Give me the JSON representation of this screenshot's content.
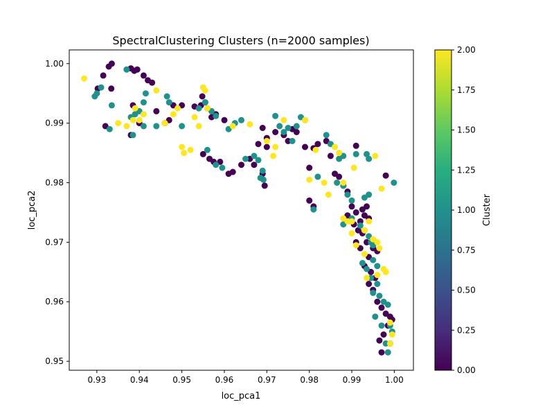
{
  "chart_data": {
    "type": "scatter",
    "title": "SpectralClustering Clusters (n=2000 samples)",
    "xlabel": "loc_pca1",
    "ylabel": "loc_pca2",
    "xlim": [
      0.9235,
      1.0045
    ],
    "ylim": [
      0.9485,
      1.0023
    ],
    "xticks": [
      0.93,
      0.94,
      0.95,
      0.96,
      0.97,
      0.98,
      0.99,
      1.0
    ],
    "xtick_labels": [
      "0.93",
      "0.94",
      "0.95",
      "0.96",
      "0.97",
      "0.98",
      "0.99",
      "1.00"
    ],
    "yticks": [
      0.95,
      0.96,
      0.97,
      0.98,
      0.99,
      1.0
    ],
    "ytick_labels": [
      "0.95",
      "0.96",
      "0.97",
      "0.98",
      "0.99",
      "1.00"
    ],
    "grid": false,
    "colormap": "viridis",
    "colorbar": {
      "label": "Cluster",
      "range": [
        0,
        2
      ],
      "ticks": [
        0,
        0.25,
        0.5,
        0.75,
        1.0,
        1.25,
        1.5,
        1.75,
        2.0
      ],
      "tick_labels": [
        "0.00",
        "0.25",
        "0.50",
        "0.75",
        "1.00",
        "1.25",
        "1.50",
        "1.75",
        "2.00"
      ]
    },
    "series": [
      {
        "cluster": 0,
        "color": "#440154",
        "points": [
          [
            0.9315,
            0.998
          ],
          [
            0.9328,
            0.9995
          ],
          [
            0.9335,
            1.0
          ],
          [
            0.9334,
            0.9958
          ],
          [
            0.9302,
            0.9958
          ],
          [
            0.938,
            0.9992
          ],
          [
            0.9388,
            0.9988
          ],
          [
            0.9395,
            0.999
          ],
          [
            0.941,
            0.998
          ],
          [
            0.942,
            0.9972
          ],
          [
            0.943,
            0.9968
          ],
          [
            0.9385,
            0.993
          ],
          [
            0.944,
            0.992
          ],
          [
            0.946,
            0.99
          ],
          [
            0.947,
            0.9905
          ],
          [
            0.948,
            0.993
          ],
          [
            0.95,
            0.993
          ],
          [
            0.953,
            0.9928
          ],
          [
            0.9545,
            0.993
          ],
          [
            0.9548,
            0.9945
          ],
          [
            0.9555,
            0.9935
          ],
          [
            0.956,
            0.9925
          ],
          [
            0.957,
            0.991
          ],
          [
            0.958,
            0.9915
          ],
          [
            0.96,
            0.9905
          ],
          [
            0.932,
            0.9895
          ],
          [
            0.938,
            0.988
          ],
          [
            0.94,
            0.99
          ],
          [
            0.955,
            0.9848
          ],
          [
            0.9565,
            0.984
          ],
          [
            0.9575,
            0.9835
          ],
          [
            0.959,
            0.9835
          ],
          [
            0.961,
            0.9815
          ],
          [
            0.962,
            0.9818
          ],
          [
            0.964,
            0.983
          ],
          [
            0.966,
            0.984
          ],
          [
            0.967,
            0.983
          ],
          [
            0.969,
            0.9815
          ],
          [
            0.9695,
            0.9795
          ],
          [
            0.968,
            0.9865
          ],
          [
            0.97,
            0.986
          ],
          [
            0.969,
            0.9892
          ],
          [
            0.97,
            0.9875
          ],
          [
            0.972,
            0.9885
          ],
          [
            0.974,
            0.988
          ],
          [
            0.976,
            0.989
          ],
          [
            0.977,
            0.9885
          ],
          [
            0.975,
            0.987
          ],
          [
            0.979,
            0.986
          ],
          [
            0.981,
            0.9858
          ],
          [
            0.98,
            0.9825
          ],
          [
            0.982,
            0.9865
          ],
          [
            0.984,
            0.987
          ],
          [
            0.985,
            0.9845
          ],
          [
            0.986,
            0.9815
          ],
          [
            0.987,
            0.981
          ],
          [
            0.988,
            0.9795
          ],
          [
            0.989,
            0.9785
          ],
          [
            0.98,
            0.977
          ],
          [
            0.981,
            0.976
          ],
          [
            0.99,
            0.976
          ],
          [
            0.991,
            0.975
          ],
          [
            0.992,
            0.9735
          ],
          [
            0.9905,
            0.973
          ],
          [
            0.9915,
            0.972
          ],
          [
            0.993,
            0.9745
          ],
          [
            0.994,
            0.974
          ],
          [
            0.9935,
            0.976
          ],
          [
            0.9925,
            0.9715
          ],
          [
            0.991,
            0.97
          ],
          [
            0.992,
            0.969
          ],
          [
            0.9935,
            0.97
          ],
          [
            0.995,
            0.969
          ],
          [
            0.996,
            0.9685
          ],
          [
            0.994,
            0.9675
          ],
          [
            0.993,
            0.966
          ],
          [
            0.9945,
            0.965
          ],
          [
            0.9955,
            0.964
          ],
          [
            0.994,
            0.963
          ],
          [
            0.995,
            0.962
          ],
          [
            0.996,
            0.96
          ],
          [
            0.997,
            0.959
          ],
          [
            0.998,
            0.958
          ],
          [
            0.999,
            0.9575
          ],
          [
            0.9985,
            0.956
          ],
          [
            0.9975,
            0.9545
          ],
          [
            0.9965,
            0.9535
          ],
          [
            0.999,
            0.953
          ],
          [
            0.997,
            0.9515
          ],
          [
            0.9995,
            0.957
          ],
          [
            0.991,
            0.9862
          ],
          [
            0.998,
            0.9812
          ],
          [
            0.989,
            0.9745
          ],
          [
            0.99,
            0.9735
          ],
          [
            0.9925,
            0.9755
          ]
        ]
      },
      {
        "cluster": 1,
        "color": "#21918c",
        "points": [
          [
            0.9295,
            0.9945
          ],
          [
            0.93,
            0.995
          ],
          [
            0.931,
            0.996
          ],
          [
            0.9335,
            0.993
          ],
          [
            0.933,
            0.989
          ],
          [
            0.937,
            0.999
          ],
          [
            0.939,
            0.9915
          ],
          [
            0.94,
            0.992
          ],
          [
            0.941,
            0.9935
          ],
          [
            0.9415,
            0.995
          ],
          [
            0.938,
            0.991
          ],
          [
            0.9385,
            0.988
          ],
          [
            0.941,
            0.9895
          ],
          [
            0.944,
            0.9895
          ],
          [
            0.9465,
            0.9945
          ],
          [
            0.947,
            0.9935
          ],
          [
            0.95,
            0.9895
          ],
          [
            0.954,
            0.9925
          ],
          [
            0.9555,
            0.9935
          ],
          [
            0.957,
            0.992
          ],
          [
            0.958,
            0.9912
          ],
          [
            0.956,
            0.9855
          ],
          [
            0.958,
            0.983
          ],
          [
            0.9595,
            0.9825
          ],
          [
            0.961,
            0.989
          ],
          [
            0.9625,
            0.99
          ],
          [
            0.964,
            0.9905
          ],
          [
            0.967,
            0.9845
          ],
          [
            0.968,
            0.9838
          ],
          [
            0.969,
            0.982
          ],
          [
            0.9692,
            0.9805
          ],
          [
            0.972,
            0.9912
          ],
          [
            0.973,
            0.9895
          ],
          [
            0.974,
            0.9885
          ],
          [
            0.976,
            0.987
          ],
          [
            0.978,
            0.991
          ],
          [
            0.979,
            0.9905
          ],
          [
            0.984,
            0.988
          ],
          [
            0.985,
            0.9865
          ],
          [
            0.987,
            0.984
          ],
          [
            0.988,
            0.9845
          ],
          [
            0.9865,
            0.98
          ],
          [
            0.988,
            0.9795
          ],
          [
            0.989,
            0.978
          ],
          [
            0.99,
            0.977
          ],
          [
            0.991,
            0.9848
          ],
          [
            0.9935,
            0.9848
          ],
          [
            0.994,
            0.984
          ],
          [
            0.993,
            0.9775
          ],
          [
            0.994,
            0.978
          ],
          [
            0.988,
            0.973
          ],
          [
            0.99,
            0.974
          ],
          [
            0.992,
            0.9728
          ],
          [
            0.993,
            0.972
          ],
          [
            0.994,
            0.971
          ],
          [
            0.9945,
            0.97
          ],
          [
            0.995,
            0.9695
          ],
          [
            0.9925,
            0.9665
          ],
          [
            0.9935,
            0.9655
          ],
          [
            0.995,
            0.967
          ],
          [
            0.996,
            0.966
          ],
          [
            0.9945,
            0.964
          ],
          [
            0.996,
            0.963
          ],
          [
            0.995,
            0.9615
          ],
          [
            0.9965,
            0.961
          ],
          [
            0.9975,
            0.96
          ],
          [
            0.9985,
            0.9595
          ],
          [
            0.9955,
            0.9575
          ],
          [
            0.997,
            0.956
          ],
          [
            0.999,
            0.956
          ],
          [
            0.9995,
            0.955
          ],
          [
            0.998,
            0.953
          ],
          [
            0.9985,
            0.9515
          ],
          [
            0.9999,
            0.98
          ],
          [
            0.981,
            0.9755
          ],
          [
            0.982,
            0.981
          ],
          [
            0.977,
            0.9895
          ],
          [
            0.975,
            0.9892
          ],
          [
            0.9685,
            0.9808
          ],
          [
            0.965,
            0.984
          ]
        ]
      },
      {
        "cluster": 2,
        "color": "#fde725",
        "points": [
          [
            0.927,
            0.9975
          ],
          [
            0.935,
            0.99
          ],
          [
            0.937,
            0.9895
          ],
          [
            0.9385,
            0.9905
          ],
          [
            0.939,
            0.9925
          ],
          [
            0.94,
            0.9905
          ],
          [
            0.941,
            0.9915
          ],
          [
            0.944,
            0.9955
          ],
          [
            0.946,
            0.99
          ],
          [
            0.948,
            0.9915
          ],
          [
            0.949,
            0.9925
          ],
          [
            0.95,
            0.986
          ],
          [
            0.9505,
            0.985
          ],
          [
            0.952,
            0.9855
          ],
          [
            0.953,
            0.991
          ],
          [
            0.954,
            0.9895
          ],
          [
            0.955,
            0.996
          ],
          [
            0.9555,
            0.9955
          ],
          [
            0.956,
            0.9925
          ],
          [
            0.962,
            0.9895
          ],
          [
            0.966,
            0.9898
          ],
          [
            0.97,
            0.987
          ],
          [
            0.9715,
            0.9845
          ],
          [
            0.972,
            0.986
          ],
          [
            0.974,
            0.9905
          ],
          [
            0.979,
            0.9905
          ],
          [
            0.98,
            0.9805
          ],
          [
            0.9815,
            0.9855
          ],
          [
            0.9835,
            0.98
          ],
          [
            0.9845,
            0.978
          ],
          [
            0.986,
            0.986
          ],
          [
            0.987,
            0.985
          ],
          [
            0.988,
            0.974
          ],
          [
            0.989,
            0.9735
          ],
          [
            0.99,
            0.9735
          ],
          [
            0.9905,
            0.9825
          ],
          [
            0.991,
            0.9695
          ],
          [
            0.993,
            0.972
          ],
          [
            0.994,
            0.9735
          ],
          [
            0.995,
            0.9705
          ],
          [
            0.996,
            0.97
          ],
          [
            0.9965,
            0.969
          ],
          [
            0.9935,
            0.964
          ],
          [
            0.996,
            0.9645
          ],
          [
            0.9975,
            0.9655
          ],
          [
            0.998,
            0.965
          ],
          [
            0.999,
            0.9565
          ],
          [
            0.9995,
            0.9545
          ],
          [
            0.999,
            0.953
          ],
          [
            0.9955,
            0.9845
          ],
          [
            0.997,
            0.979
          ],
          [
            0.988,
            0.98
          ],
          [
            0.993,
            0.968
          ],
          [
            0.99,
            0.9715
          ]
        ]
      }
    ]
  }
}
